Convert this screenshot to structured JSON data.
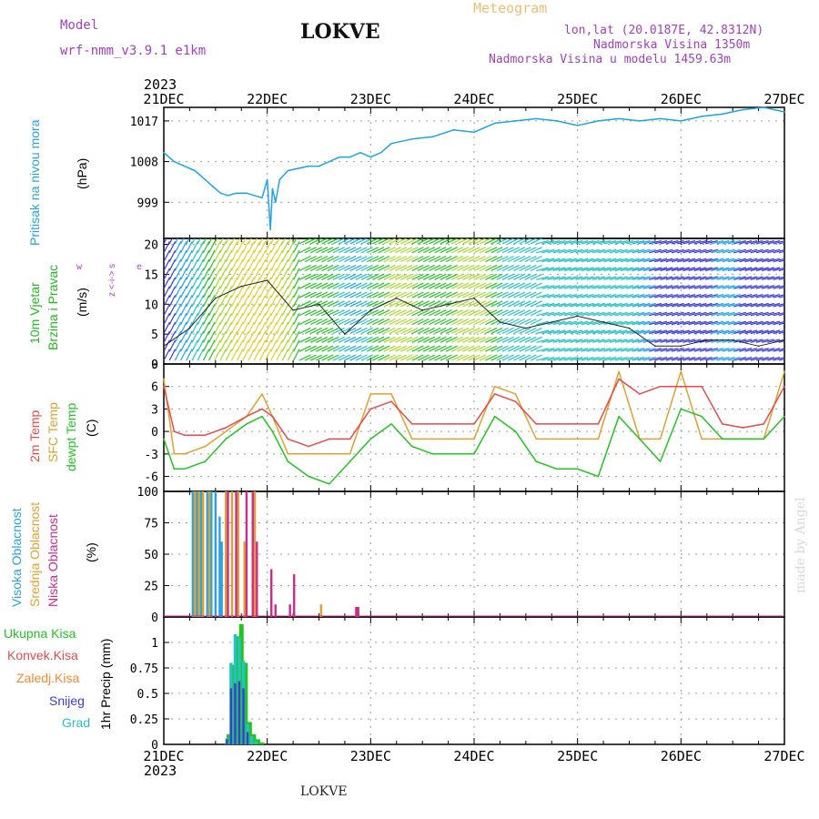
{
  "header": {
    "model_label": "Model",
    "model_name": "wrf-nmm_v3.9.1  e1km",
    "title": "LOKVE",
    "meteogram_label": "Meteogram",
    "lonlat": "lon,lat (20.0187E, 42.8312N)",
    "elevation": "Nadmorska Visina 1350m",
    "model_elevation": "Nadmorska Visina u modelu 1459.63m",
    "year_top": "2023",
    "year_bottom": "2023"
  },
  "footer": {
    "station": "LOKVE",
    "watermark": "made by Angel"
  },
  "colors": {
    "pressure": "#1ea3e6",
    "t2m": "#e84a4a",
    "sfc": "#e0a030",
    "dewpt": "#22c322",
    "cloud_high": "#29a3e0",
    "cloud_mid": "#e0a030",
    "cloud_low": "#cc2b8c",
    "rain_total": "#22c322",
    "rain_conv": "#e84a4a",
    "rain_frz": "#f08a30",
    "snow": "#3b3bd8",
    "graupel": "#25c2c2",
    "model_header": "#a040c0",
    "meteogram": "#e8c070",
    "wind_label": "#22b822",
    "wind_dir_label": "#b040d0"
  },
  "chart_data": [
    {
      "type": "line",
      "title": "",
      "ylabel": "Pritisak na nivou mora",
      "unit": "(hPa)",
      "ylim": [
        991,
        1020
      ],
      "yticks": [
        "999",
        "1008",
        "1017"
      ],
      "xticks": [
        "21DEC",
        "22DEC",
        "23DEC",
        "24DEC",
        "25DEC",
        "26DEC",
        "27DEC"
      ],
      "grid": true,
      "series": [
        {
          "name": "",
          "x": [
            0,
            0.1,
            0.2,
            0.3,
            0.4,
            0.5,
            0.55,
            0.62,
            0.7,
            0.8,
            0.95,
            1.0,
            1.03,
            1.05,
            1.08,
            1.12,
            1.2,
            1.3,
            1.4,
            1.5,
            1.6,
            1.7,
            1.8,
            1.9,
            2.0,
            2.1,
            2.2,
            2.4,
            2.6,
            2.8,
            3.0,
            3.1,
            3.2,
            3.4,
            3.6,
            3.8,
            4.0,
            4.2,
            4.4,
            4.6,
            4.8,
            5.0,
            5.2,
            5.4,
            5.6,
            5.8,
            6.0
          ],
          "y": [
            1010,
            1008,
            1007,
            1006,
            1004,
            1002,
            1001,
            1000.5,
            1001,
            1001,
            1000,
            1004,
            993,
            1002,
            999,
            1004,
            1006,
            1006.5,
            1007,
            1007,
            1008,
            1009,
            1009,
            1010,
            1009,
            1010,
            1012,
            1013,
            1013.5,
            1015,
            1014.5,
            1015.5,
            1016.5,
            1017,
            1017.5,
            1017,
            1016,
            1017,
            1017.5,
            1017,
            1017.5,
            1017,
            1018,
            1018.5,
            1019.5,
            1020,
            1019
          ]
        }
      ]
    },
    {
      "type": "line",
      "title": "",
      "ylabel_lines": [
        "10m Vjetar",
        "Brzina i Pravac"
      ],
      "unit": "(m/s)",
      "direction_legend": [
        "z",
        "<-i->",
        "s",
        "w",
        "e"
      ],
      "ylim": [
        0,
        21
      ],
      "yticks": [
        "0",
        "5",
        "10",
        "15",
        "20"
      ],
      "grid": true,
      "series": [
        {
          "name": "",
          "x": [
            0,
            0.25,
            0.5,
            0.75,
            1.0,
            1.25,
            1.5,
            1.75,
            2.0,
            2.25,
            2.5,
            2.75,
            3.0,
            3.25,
            3.5,
            3.75,
            4.0,
            4.25,
            4.5,
            4.75,
            5.0,
            5.25,
            5.5,
            5.75,
            6.0
          ],
          "y": [
            3,
            6,
            11,
            13,
            14,
            9,
            10,
            5,
            9,
            11,
            9,
            10,
            11,
            7,
            6,
            7,
            8,
            7,
            6,
            3,
            3,
            4,
            4,
            3,
            4
          ]
        }
      ]
    },
    {
      "type": "line",
      "title": "",
      "ylabel_lines": [
        "2m Temp",
        "SFC Temp",
        "dewpt Temp"
      ],
      "unit": "(C)",
      "ylim": [
        -8,
        9
      ],
      "yticks": [
        "-6",
        "-3",
        "0",
        "3",
        "6",
        "9"
      ],
      "grid": true,
      "series": [
        {
          "name": "2m Temp",
          "x": [
            0,
            0.1,
            0.2,
            0.4,
            0.6,
            0.8,
            0.95,
            1.05,
            1.2,
            1.4,
            1.6,
            1.8,
            2.0,
            2.2,
            2.4,
            2.6,
            2.8,
            3.0,
            3.2,
            3.4,
            3.6,
            3.8,
            4.0,
            4.2,
            4.4,
            4.6,
            4.8,
            5.0,
            5.2,
            5.4,
            5.6,
            5.8,
            6.0
          ],
          "y": [
            6,
            0,
            -0.5,
            -0.5,
            0.5,
            2,
            3,
            2,
            -1,
            -2,
            -1,
            -1,
            3,
            4,
            1,
            1,
            1,
            1,
            5,
            4,
            1,
            1,
            1,
            1,
            7,
            5,
            6,
            6,
            6,
            1,
            0.5,
            1,
            6
          ]
        },
        {
          "name": "SFC Temp",
          "x": [
            0,
            0.1,
            0.2,
            0.4,
            0.6,
            0.8,
            0.95,
            1.05,
            1.2,
            1.4,
            1.6,
            1.8,
            2.0,
            2.2,
            2.4,
            2.6,
            2.8,
            3.0,
            3.2,
            3.4,
            3.6,
            3.8,
            4.0,
            4.2,
            4.4,
            4.6,
            4.8,
            5.0,
            5.2,
            5.4,
            5.6,
            5.8,
            6.0
          ],
          "y": [
            7,
            -3,
            -3,
            -2,
            0,
            2,
            5,
            2,
            -3,
            -3,
            -3,
            -3,
            5,
            5,
            -1,
            -1,
            -1,
            -1,
            6,
            5,
            -1,
            -1,
            -1,
            -1,
            8,
            -1,
            -1,
            8,
            -1,
            -1,
            -1,
            -1,
            8
          ]
        },
        {
          "name": "dewpt Temp",
          "x": [
            0,
            0.1,
            0.2,
            0.4,
            0.6,
            0.8,
            0.95,
            1.05,
            1.2,
            1.4,
            1.6,
            1.8,
            2.0,
            2.2,
            2.4,
            2.6,
            2.8,
            3.0,
            3.2,
            3.4,
            3.6,
            3.8,
            4.0,
            4.2,
            4.4,
            4.6,
            4.8,
            5.0,
            5.2,
            5.4,
            5.6,
            5.8,
            6.0
          ],
          "y": [
            -1,
            -5,
            -5,
            -4,
            -1,
            1,
            2,
            0,
            -4,
            -6,
            -7,
            -4,
            -1,
            1,
            -2,
            -3,
            -3,
            -3,
            2,
            0,
            -4,
            -5,
            -5,
            -6,
            2,
            -1,
            -4,
            3,
            2,
            -1,
            -1,
            -1,
            2
          ]
        }
      ]
    },
    {
      "type": "bar",
      "title": "",
      "ylabel_lines": [
        "Visoka Oblacnost",
        "Srednja Oblacnost",
        "Niska Oblacnost"
      ],
      "unit": "(%)",
      "ylim": [
        0,
        100
      ],
      "yticks": [
        "0",
        "25",
        "50",
        "75",
        "100"
      ],
      "grid": true,
      "series": [
        {
          "name": "Visoka Oblacnost",
          "x": [
            0.28,
            0.32,
            0.36,
            0.42,
            0.46,
            0.5,
            0.54,
            0.56
          ],
          "values": [
            100,
            100,
            100,
            100,
            100,
            100,
            80,
            60
          ]
        },
        {
          "name": "Srednja Oblacnost",
          "x": [
            0.3,
            0.34,
            0.38,
            0.44,
            0.6,
            0.66,
            0.72,
            0.78,
            0.88,
            1.52
          ],
          "values": [
            100,
            100,
            100,
            100,
            100,
            100,
            100,
            60,
            100,
            10
          ]
        },
        {
          "name": "Niska Oblacnost",
          "x": [
            0.62,
            0.7,
            0.8,
            0.86,
            0.9,
            1.04,
            1.08,
            1.22,
            1.26,
            1.86,
            1.88
          ],
          "values": [
            100,
            100,
            100,
            100,
            60,
            38,
            10,
            10,
            34,
            8,
            8
          ]
        }
      ]
    },
    {
      "type": "bar",
      "title": "",
      "ylabel": "1hr Precip",
      "unit": "(mm)",
      "ylim": [
        0,
        1.25
      ],
      "yticks": [
        "0",
        "0.25",
        "0.5",
        "0.75",
        "1"
      ],
      "grid": true,
      "legend": [
        "Ukupna Kisa",
        "Konvek.Kisa",
        "Zaledj.Kisa",
        "Snijeg",
        "Grad"
      ],
      "series": [
        {
          "name": "Ukupna Kisa",
          "x": [
            0.63,
            0.67,
            0.71,
            0.75,
            0.79,
            0.83,
            0.87,
            0.91,
            0.95
          ],
          "values": [
            0.1,
            0.78,
            1.06,
            1.18,
            0.8,
            0.22,
            0.1,
            0.05,
            0.02
          ]
        },
        {
          "name": "Grad",
          "x": [
            0.61,
            0.65,
            0.69,
            0.73,
            0.77,
            0.81,
            0.85,
            0.89
          ],
          "values": [
            0.06,
            0.8,
            1.08,
            1.05,
            0.82,
            0.2,
            0.08,
            0.03
          ]
        },
        {
          "name": "Snijeg",
          "x": [
            0.61,
            0.65,
            0.69,
            0.73,
            0.77,
            0.81
          ],
          "values": [
            0.05,
            0.55,
            0.6,
            0.62,
            0.55,
            0.12
          ]
        }
      ]
    }
  ]
}
